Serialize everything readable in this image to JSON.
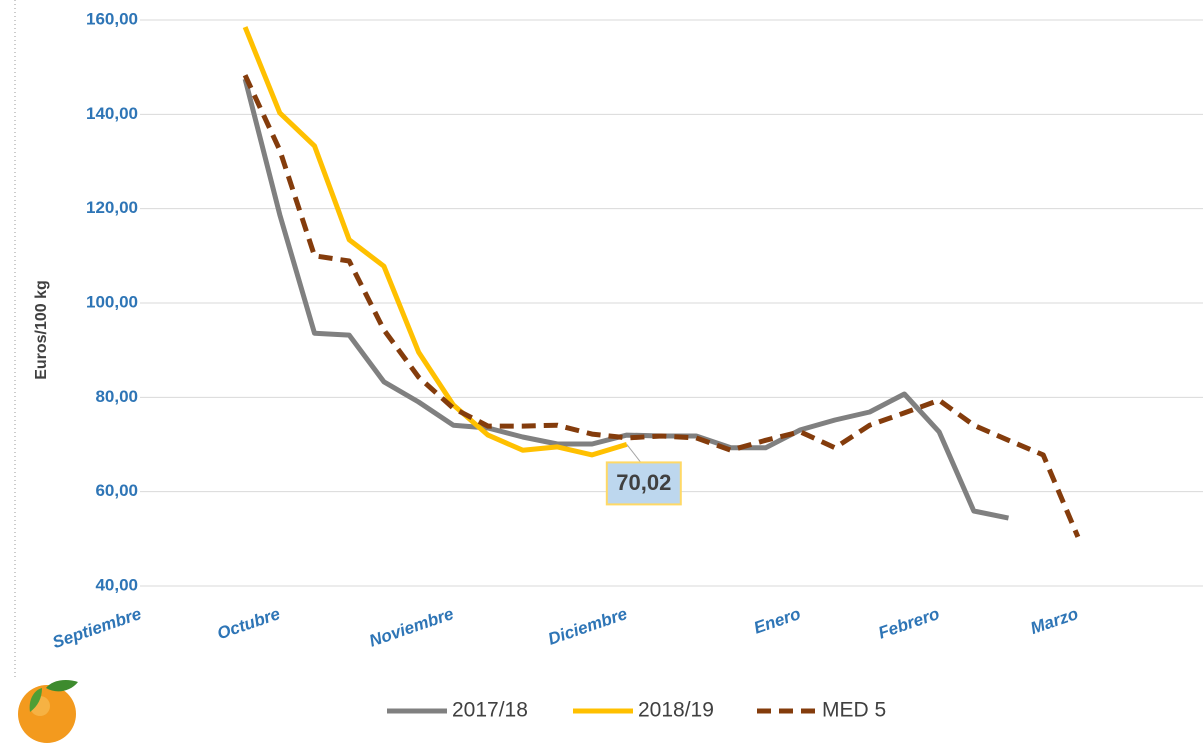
{
  "chart_data": {
    "type": "line",
    "y_label": "Euros/100 kg",
    "categories": [
      "Septiembre",
      null,
      null,
      null,
      "Octubre",
      null,
      null,
      null,
      null,
      "Noviembre",
      null,
      null,
      null,
      null,
      "Diciembre",
      null,
      null,
      null,
      null,
      "Enero",
      null,
      null,
      null,
      "Febrero",
      null,
      null,
      null,
      "Marzo",
      null,
      null,
      null
    ],
    "ylim": [
      40,
      160
    ],
    "yticks": [
      {
        "value": 40,
        "label": "40,00"
      },
      {
        "value": 60,
        "label": "60,00"
      },
      {
        "value": 80,
        "label": "80,00"
      },
      {
        "value": 100,
        "label": "100,00"
      },
      {
        "value": 120,
        "label": "120,00"
      },
      {
        "value": 140,
        "label": "140,00"
      },
      {
        "value": 160,
        "label": "160,00"
      }
    ],
    "grid": true,
    "legend": "bottom",
    "series": [
      {
        "name": "2017/18",
        "color": "#808080",
        "dash": false,
        "values": [
          null,
          null,
          null,
          147.5,
          118.7,
          93.6,
          93.2,
          83.3,
          79,
          74.1,
          73.5,
          71.6,
          70.1,
          70.1,
          72,
          71.8,
          71.8,
          69.3,
          69.3,
          73.1,
          75.2,
          76.9,
          80.7,
          72.7,
          55.9,
          54.4,
          null,
          null,
          null,
          null,
          null
        ]
      },
      {
        "name": "2018/19",
        "color": "#ffc000",
        "dash": false,
        "values": [
          null,
          null,
          null,
          158.5,
          140.3,
          133.3,
          113.4,
          107.8,
          89.6,
          78.4,
          72,
          68.8,
          69.5,
          67.8,
          70.02,
          null,
          null,
          null,
          null,
          null,
          null,
          null,
          null,
          null,
          null,
          null,
          null,
          null,
          null,
          null,
          null
        ],
        "value_labels": [
          null,
          null,
          null,
          null,
          null,
          null,
          null,
          null,
          null,
          null,
          null,
          null,
          null,
          null,
          "70,02",
          null,
          null,
          null,
          null,
          null,
          null,
          null,
          null,
          null,
          null,
          null,
          null,
          null,
          null,
          null,
          null
        ]
      },
      {
        "name": "MED 5",
        "color": "#843c0c",
        "dash": true,
        "values": [
          null,
          null,
          null,
          148.3,
          132.4,
          110,
          108.9,
          94.3,
          84.3,
          77.7,
          73.9,
          73.9,
          74.1,
          72.2,
          71.4,
          71.8,
          71.4,
          68.8,
          70.9,
          72.7,
          69.3,
          74.1,
          76.7,
          79.4,
          74.1,
          70.9,
          67.8,
          50.4,
          null,
          null,
          null
        ]
      }
    ]
  }
}
